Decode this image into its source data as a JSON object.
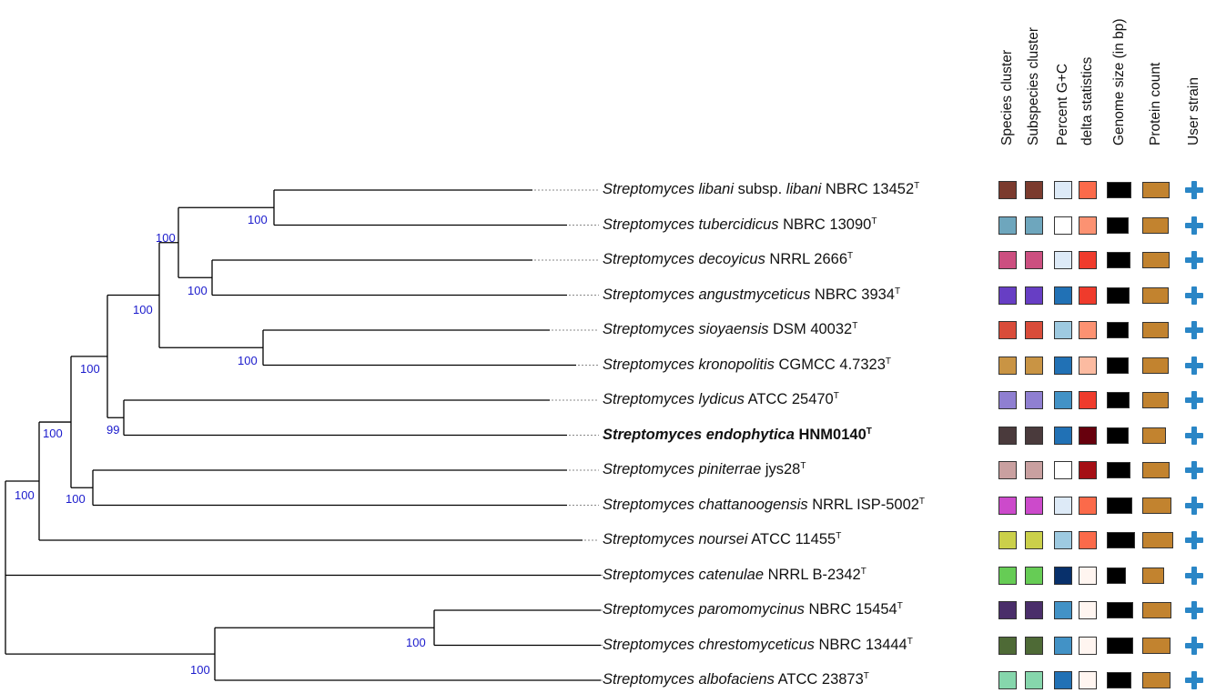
{
  "columns": [
    "Species cluster",
    "Subspecies cluster",
    "Percent G+C",
    "delta statistics",
    "Genome size (in bp)",
    "Protein count",
    "User strain"
  ],
  "taxa": [
    {
      "species": "Streptomyces libani",
      "extra": " subsp. ",
      "extra_italic": "libani",
      "strain": " NBRC 13452",
      "bold": false,
      "species_color": "#7b3b2e",
      "subspecies_color": "#7b3b2e",
      "gc_color": "#ddeaf7",
      "delta_color": "#fb6a4a",
      "genome_size_level": 0.78,
      "protein_count_level": 0.88
    },
    {
      "species": "Streptomyces tubercidicus",
      "extra": "",
      "extra_italic": "",
      "strain": " NBRC 13090",
      "bold": false,
      "species_color": "#6ea6bd",
      "subspecies_color": "#6ea6bd",
      "gc_color": "#ffffff",
      "delta_color": "#fc9272",
      "genome_size_level": 0.72,
      "protein_count_level": 0.85
    },
    {
      "species": "Streptomyces decoyicus",
      "extra": "",
      "extra_italic": "",
      "strain": " NRRL 2666",
      "bold": false,
      "species_color": "#cc4f80",
      "subspecies_color": "#cc4f80",
      "gc_color": "#ddeaf7",
      "delta_color": "#ef3b2c",
      "genome_size_level": 0.76,
      "protein_count_level": 0.87
    },
    {
      "species": "Streptomyces angustmyceticus",
      "extra": "",
      "extra_italic": "",
      "strain": " NBRC 3934",
      "bold": false,
      "species_color": "#673ec4",
      "subspecies_color": "#673ec4",
      "gc_color": "#2171b5",
      "delta_color": "#ef3b2c",
      "genome_size_level": 0.74,
      "protein_count_level": 0.86
    },
    {
      "species": "Streptomyces sioyaensis",
      "extra": "",
      "extra_italic": "",
      "strain": " DSM 40032",
      "bold": false,
      "species_color": "#d94c3a",
      "subspecies_color": "#d94c3a",
      "gc_color": "#9ecae1",
      "delta_color": "#fc9272",
      "genome_size_level": 0.72,
      "protein_count_level": 0.84
    },
    {
      "species": "Streptomyces kronopolitis",
      "extra": "",
      "extra_italic": "",
      "strain": " CGMCC 4.7323",
      "bold": false,
      "species_color": "#c99444",
      "subspecies_color": "#c99444",
      "gc_color": "#2171b5",
      "delta_color": "#fcbba1",
      "genome_size_level": 0.71,
      "protein_count_level": 0.85
    },
    {
      "species": "Streptomyces lydicus",
      "extra": "",
      "extra_italic": "",
      "strain": " ATCC 25470",
      "bold": false,
      "species_color": "#8f7fd1",
      "subspecies_color": "#8f7fd1",
      "gc_color": "#4292c6",
      "delta_color": "#ef3b2c",
      "genome_size_level": 0.73,
      "protein_count_level": 0.86
    },
    {
      "species": "Streptomyces endophytica",
      "extra": "",
      "extra_italic": "",
      "strain": " HNM0140",
      "bold": true,
      "species_color": "#4a3a3c",
      "subspecies_color": "#4a3a3c",
      "gc_color": "#2171b5",
      "delta_color": "#67000d",
      "genome_size_level": 0.7,
      "protein_count_level": 0.76
    },
    {
      "species": "Streptomyces piniterrae",
      "extra": "",
      "extra_italic": "",
      "strain": " jys28",
      "bold": false,
      "species_color": "#c9a0a0",
      "subspecies_color": "#c9a0a0",
      "gc_color": "#ffffff",
      "delta_color": "#a50f15",
      "genome_size_level": 0.76,
      "protein_count_level": 0.87
    },
    {
      "species": "Streptomyces chattanoogensis",
      "extra": "",
      "extra_italic": "",
      "strain": " NRRL ISP-5002",
      "bold": false,
      "species_color": "#cc4acb",
      "subspecies_color": "#cc4acb",
      "gc_color": "#ddeaf7",
      "delta_color": "#fb6a4a",
      "genome_size_level": 0.82,
      "protein_count_level": 0.93
    },
    {
      "species": "Streptomyces noursei",
      "extra": "",
      "extra_italic": "",
      "strain": " ATCC 11455",
      "bold": false,
      "species_color": "#cbd04a",
      "subspecies_color": "#cbd04a",
      "gc_color": "#9ecae1",
      "delta_color": "#fb6a4a",
      "genome_size_level": 0.92,
      "protein_count_level": 1.0
    },
    {
      "species": "Streptomyces catenulae",
      "extra": "",
      "extra_italic": "",
      "strain": " NRRL B-2342",
      "bold": false,
      "species_color": "#66cc55",
      "subspecies_color": "#66cc55",
      "gc_color": "#08306b",
      "delta_color": "#fff5f0",
      "genome_size_level": 0.63,
      "protein_count_level": 0.7
    },
    {
      "species": "Streptomyces paromomycinus",
      "extra": "",
      "extra_italic": "",
      "strain": " NBRC 15454",
      "bold": false,
      "species_color": "#4a2e6a",
      "subspecies_color": "#4a2e6a",
      "gc_color": "#4292c6",
      "delta_color": "#fff5f0",
      "genome_size_level": 0.86,
      "protein_count_level": 0.93
    },
    {
      "species": "Streptomyces chrestomyceticus",
      "extra": "",
      "extra_italic": "",
      "strain": " NBRC 13444",
      "bold": false,
      "species_color": "#4e6a36",
      "subspecies_color": "#4e6a36",
      "gc_color": "#4292c6",
      "delta_color": "#fff5f0",
      "genome_size_level": 0.86,
      "protein_count_level": 0.91
    },
    {
      "species": "Streptomyces albofaciens",
      "extra": "",
      "extra_italic": "",
      "strain": " ATCC 23873",
      "bold": false,
      "species_color": "#86d6ac",
      "subspecies_color": "#86d6ac",
      "gc_color": "#2171b5",
      "delta_color": "#fff5f0",
      "genome_size_level": 0.8,
      "protein_count_level": 0.9
    }
  ],
  "type_strain_mark": "T",
  "support_labels": {
    "libani_tubercidicus": "100",
    "decoyicus_angustmyceticus": "100",
    "upper_four": "100",
    "sioyaensis_kronopolitis": "100",
    "upper_six": "100",
    "lydicus_endophytica": "99",
    "upper_eight": "100",
    "piniterrae_chattanoogensis": "100",
    "upper_ten": "100",
    "root": "100",
    "paromomycinus_chrestomyceticus": "100",
    "lower_three": "100"
  },
  "colors": {
    "branch": "#000000",
    "support_text": "#1a1acc",
    "user_strain_icon": "#2a86c6",
    "genome_size_fill": "#000000",
    "protein_count_fill": "#c2832f"
  }
}
